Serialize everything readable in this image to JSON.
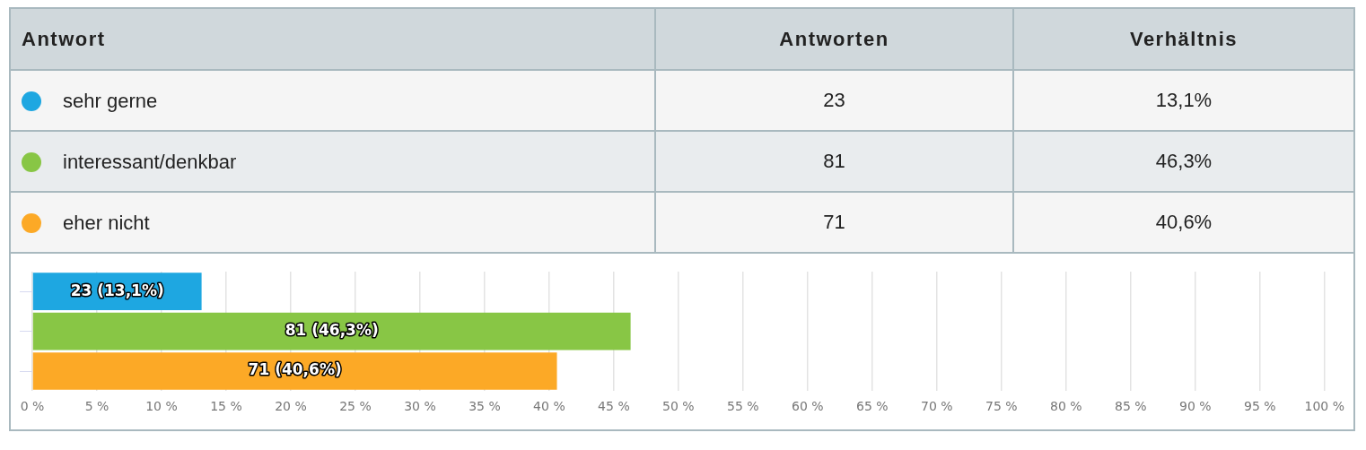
{
  "chart_data": {
    "type": "bar",
    "orientation": "horizontal",
    "categories": [
      null,
      null,
      null
    ],
    "values": [
      13.1,
      46.3,
      40.6
    ],
    "colors": [
      "#1ea7e1",
      "#88c645",
      "#fca926"
    ],
    "value_labels": [
      "23 (13,1%)",
      "81 (46,3%)",
      "71 (40,6%)"
    ],
    "xlim": [
      0,
      100
    ],
    "xticks": [
      {
        "value": 0,
        "label": "0 %"
      },
      {
        "value": 5,
        "label": "5 %"
      },
      {
        "value": 10,
        "label": "10 %"
      },
      {
        "value": 15,
        "label": "15 %"
      },
      {
        "value": 20,
        "label": "20 %"
      },
      {
        "value": 25,
        "label": "25 %"
      },
      {
        "value": 30,
        "label": "30 %"
      },
      {
        "value": 35,
        "label": "35 %"
      },
      {
        "value": 40,
        "label": "40 %"
      },
      {
        "value": 45,
        "label": "45 %"
      },
      {
        "value": 50,
        "label": "50 %"
      },
      {
        "value": 55,
        "label": "55 %"
      },
      {
        "value": 60,
        "label": "60 %"
      },
      {
        "value": 65,
        "label": "65 %"
      },
      {
        "value": 70,
        "label": "70 %"
      },
      {
        "value": 75,
        "label": "75 %"
      },
      {
        "value": 80,
        "label": "80 %"
      },
      {
        "value": 85,
        "label": "85 %"
      },
      {
        "value": 90,
        "label": "90 %"
      },
      {
        "value": 95,
        "label": "95 %"
      },
      {
        "value": 100,
        "label": "100 %"
      }
    ],
    "grid": "x",
    "legend": false,
    "tick_labels": "x",
    "annotations": [
      "Antwort",
      "Antworten",
      "Verhältnis",
      "sehr gerne",
      "23",
      "13,1%",
      "interessant/denkbar",
      "81",
      "46,3%",
      "eher nicht",
      "71",
      "40,6%"
    ]
  }
}
